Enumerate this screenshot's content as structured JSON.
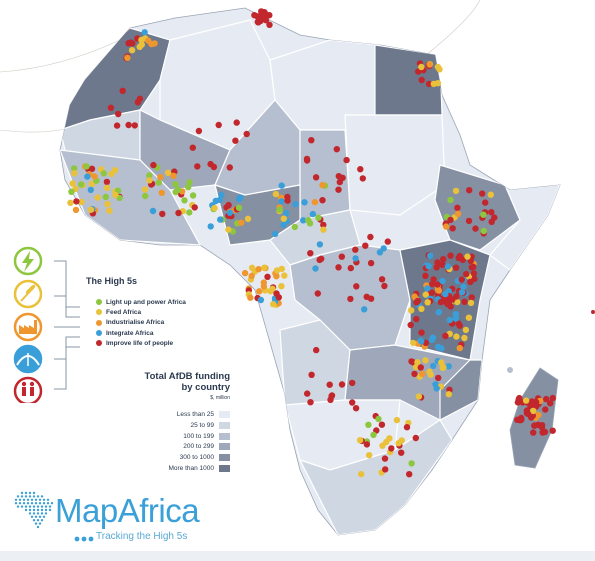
{
  "legend": {
    "title": "The High 5s",
    "items": [
      {
        "label": "Light up and power Africa",
        "color": "#8dc63f",
        "icon": "lightning-bolt-icon"
      },
      {
        "label": "Feed Africa",
        "color": "#e9c13a",
        "icon": "wheat-icon"
      },
      {
        "label": "Industrialise Africa",
        "color": "#f0962e",
        "icon": "factory-icon"
      },
      {
        "label": "Integrate Africa",
        "color": "#3a9fd9",
        "icon": "arch-icon"
      },
      {
        "label": "Improve life of people",
        "color": "#c1272d",
        "icon": "people-icon"
      }
    ]
  },
  "funding": {
    "title_line1": "Total AfDB funding",
    "title_line2": "by country",
    "unit": "$, million",
    "bins": [
      {
        "label": "Less than 25",
        "color": "#e6ebf3"
      },
      {
        "label": "25 to 99",
        "color": "#cfd7e3"
      },
      {
        "label": "100 to 199",
        "color": "#b6bfcf"
      },
      {
        "label": "200 to 299",
        "color": "#9ea8ba"
      },
      {
        "label": "300 to 1000",
        "color": "#8590a3"
      },
      {
        "label": "More than 1000",
        "color": "#6d788c"
      }
    ]
  },
  "brand": {
    "name": "MapAfrica",
    "tagline": "Tracking the High 5s",
    "color": "#3aa0d8"
  },
  "colors": {
    "land": "#e6ebf3",
    "border": "#ffffff",
    "ocean": "#ffffff"
  }
}
